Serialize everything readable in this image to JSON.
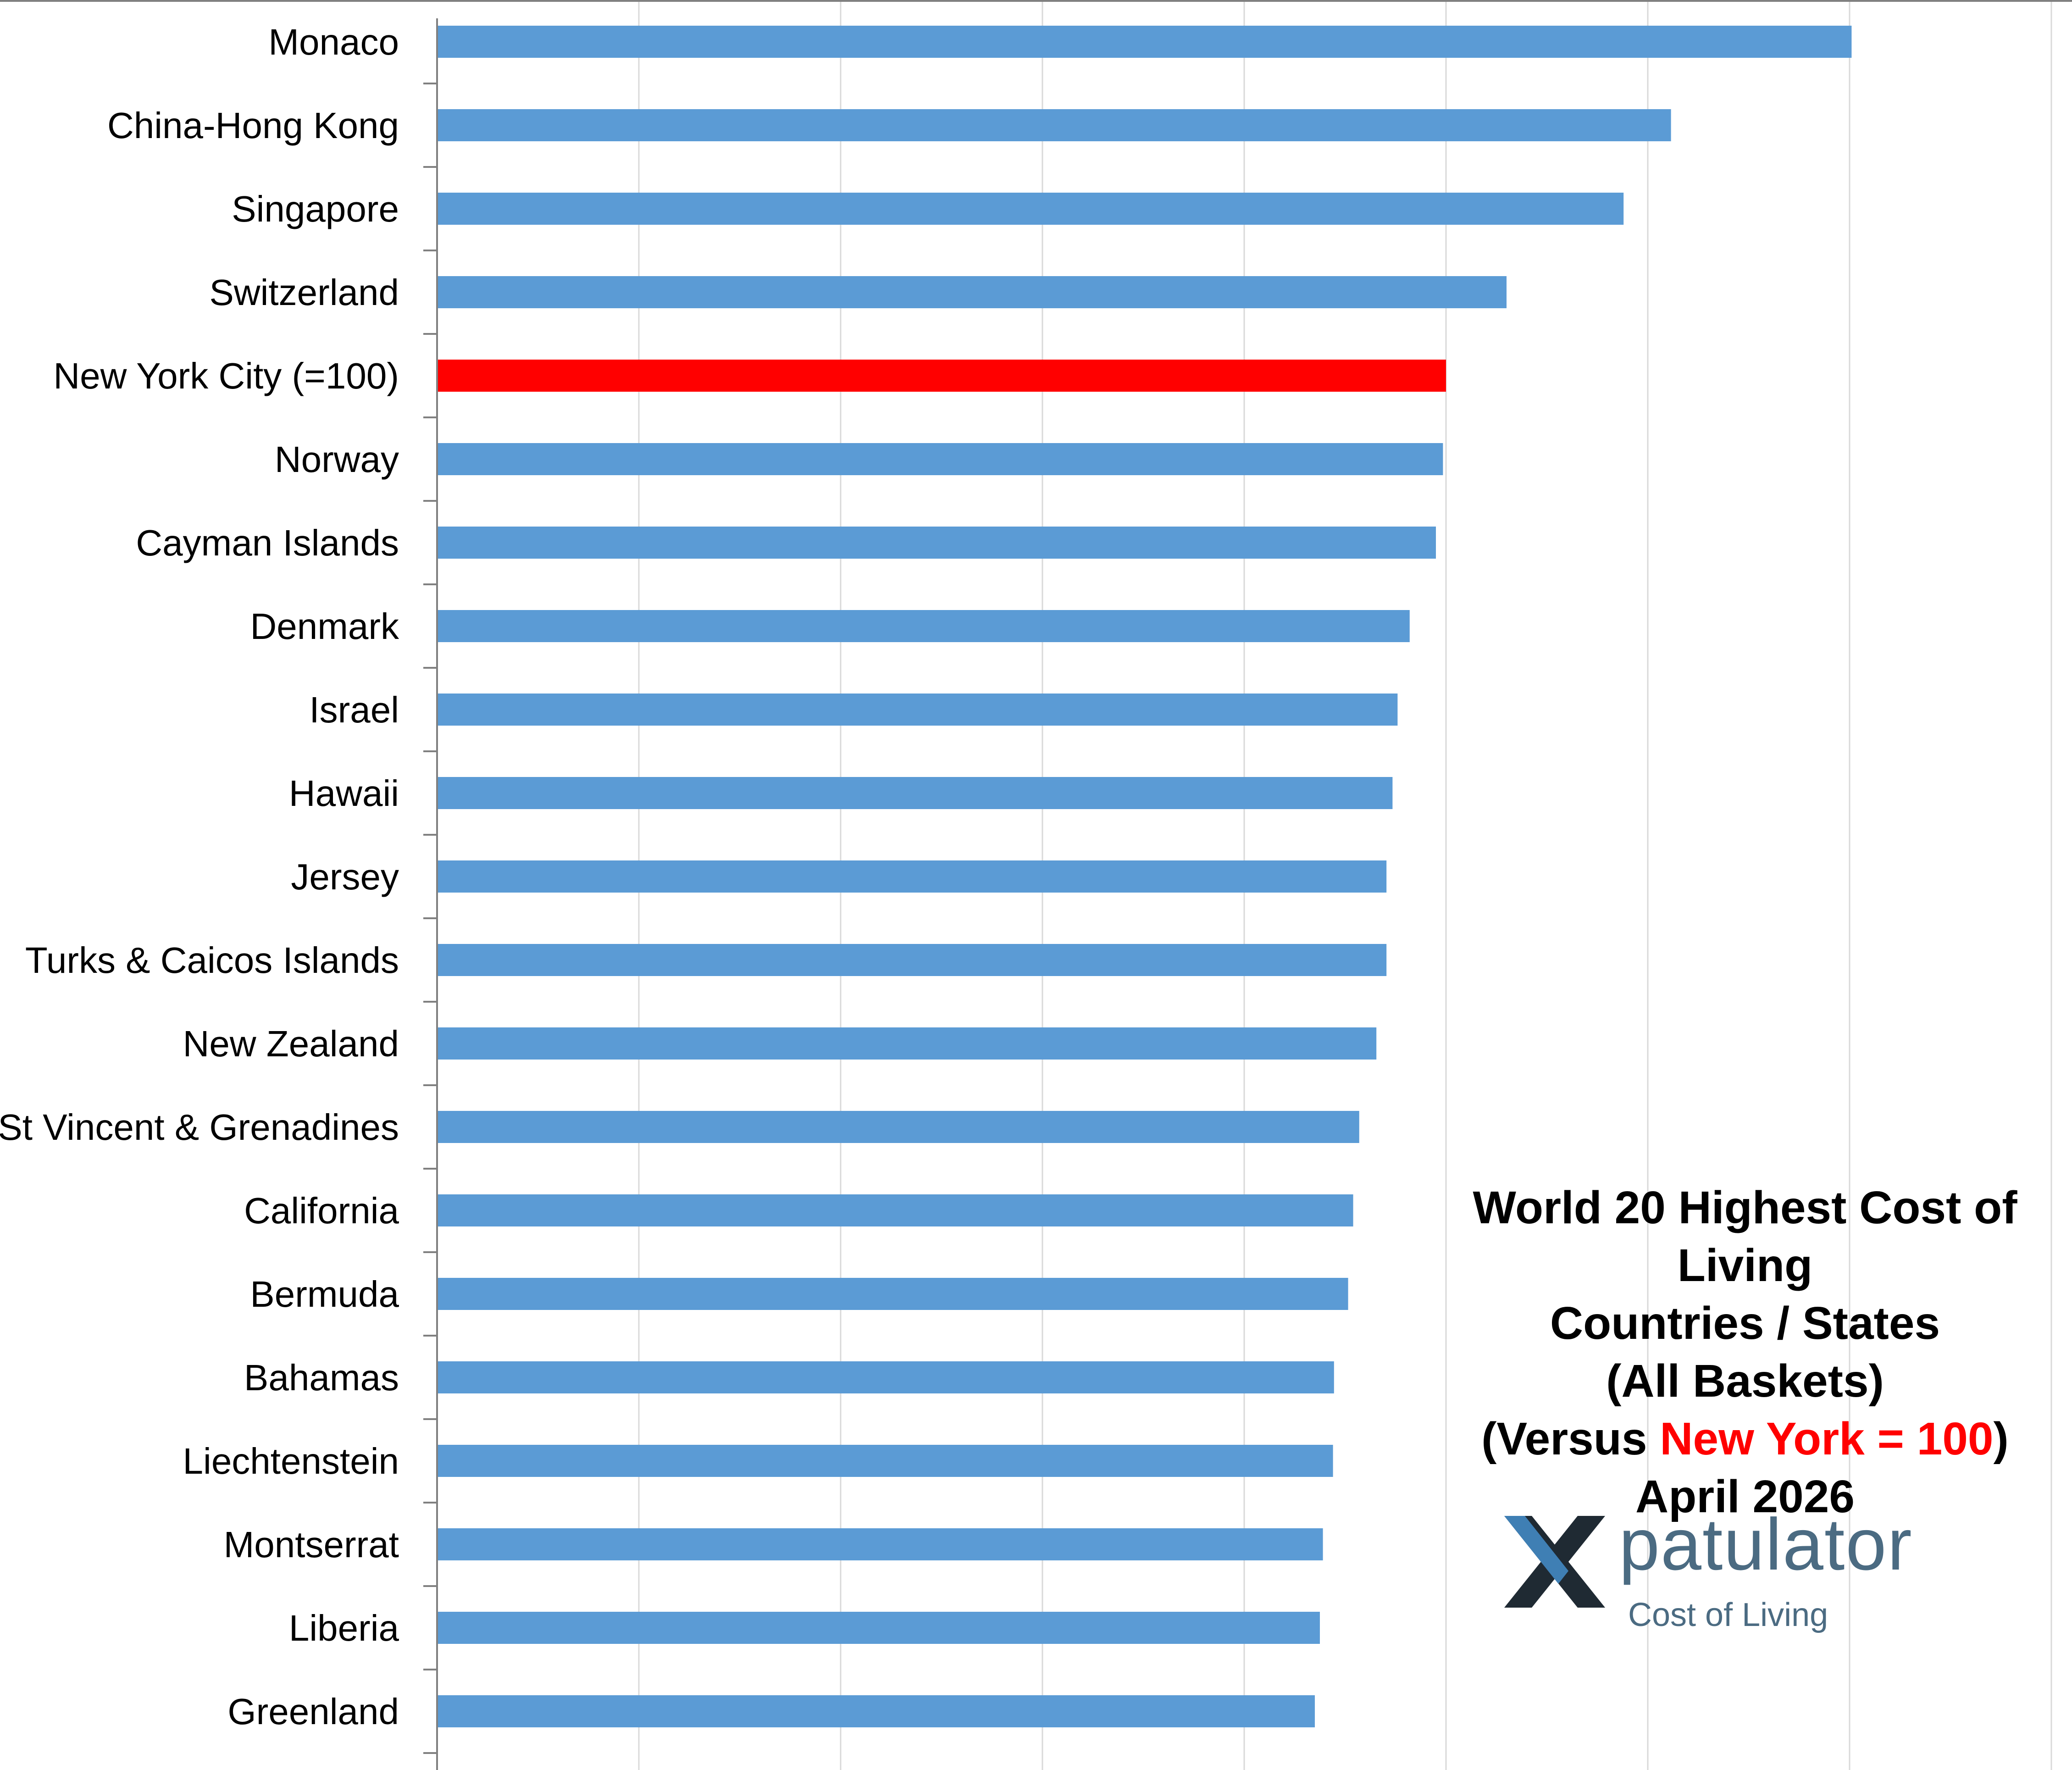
{
  "chart_data": {
    "type": "bar",
    "orientation": "horizontal",
    "categories": [
      "Monaco",
      "China-Hong Kong",
      "Singapore",
      "Switzerland",
      "New York City (=100)",
      "Norway",
      "Cayman Islands",
      "Denmark",
      "Israel",
      "Hawaii",
      "Jersey",
      "Turks & Caicos Islands",
      "New Zealand",
      "St Vincent & Grenadines",
      "California",
      "Bermuda",
      "Bahamas",
      "Liechtenstein",
      "Montserrat",
      "Liberia",
      "Greenland"
    ],
    "values": [
      140.2,
      122.3,
      117.6,
      106.0,
      100.0,
      99.7,
      99.0,
      96.4,
      95.2,
      94.7,
      94.1,
      94.1,
      93.1,
      91.4,
      90.8,
      90.3,
      88.9,
      88.8,
      87.8,
      87.5,
      87.0
    ],
    "highlight_category": "New York City (=100)",
    "xlim": [
      0,
      160
    ],
    "grid": true,
    "tick_labels_shown": false,
    "colors": {
      "bar": "#5b9bd5",
      "highlight": "#ff0000",
      "grid": "#d9d9d9",
      "axis": "#808080"
    }
  },
  "title": {
    "line1": "World 20 Highest Cost of Living",
    "line2": "Countries / States",
    "line3": "(All Baskets)",
    "line4_prefix": "(Versus ",
    "line4_highlight": "New York = 100",
    "line4_suffix": ")",
    "line5": "April 2026"
  },
  "logo": {
    "word": "patulator",
    "subtitle": "Cost of Living",
    "mark_icon": "x-mark-icon",
    "colors": {
      "text": "#4b6b82",
      "mark_dark": "#1f2a33",
      "mark_blue": "#3f7fb4"
    }
  }
}
